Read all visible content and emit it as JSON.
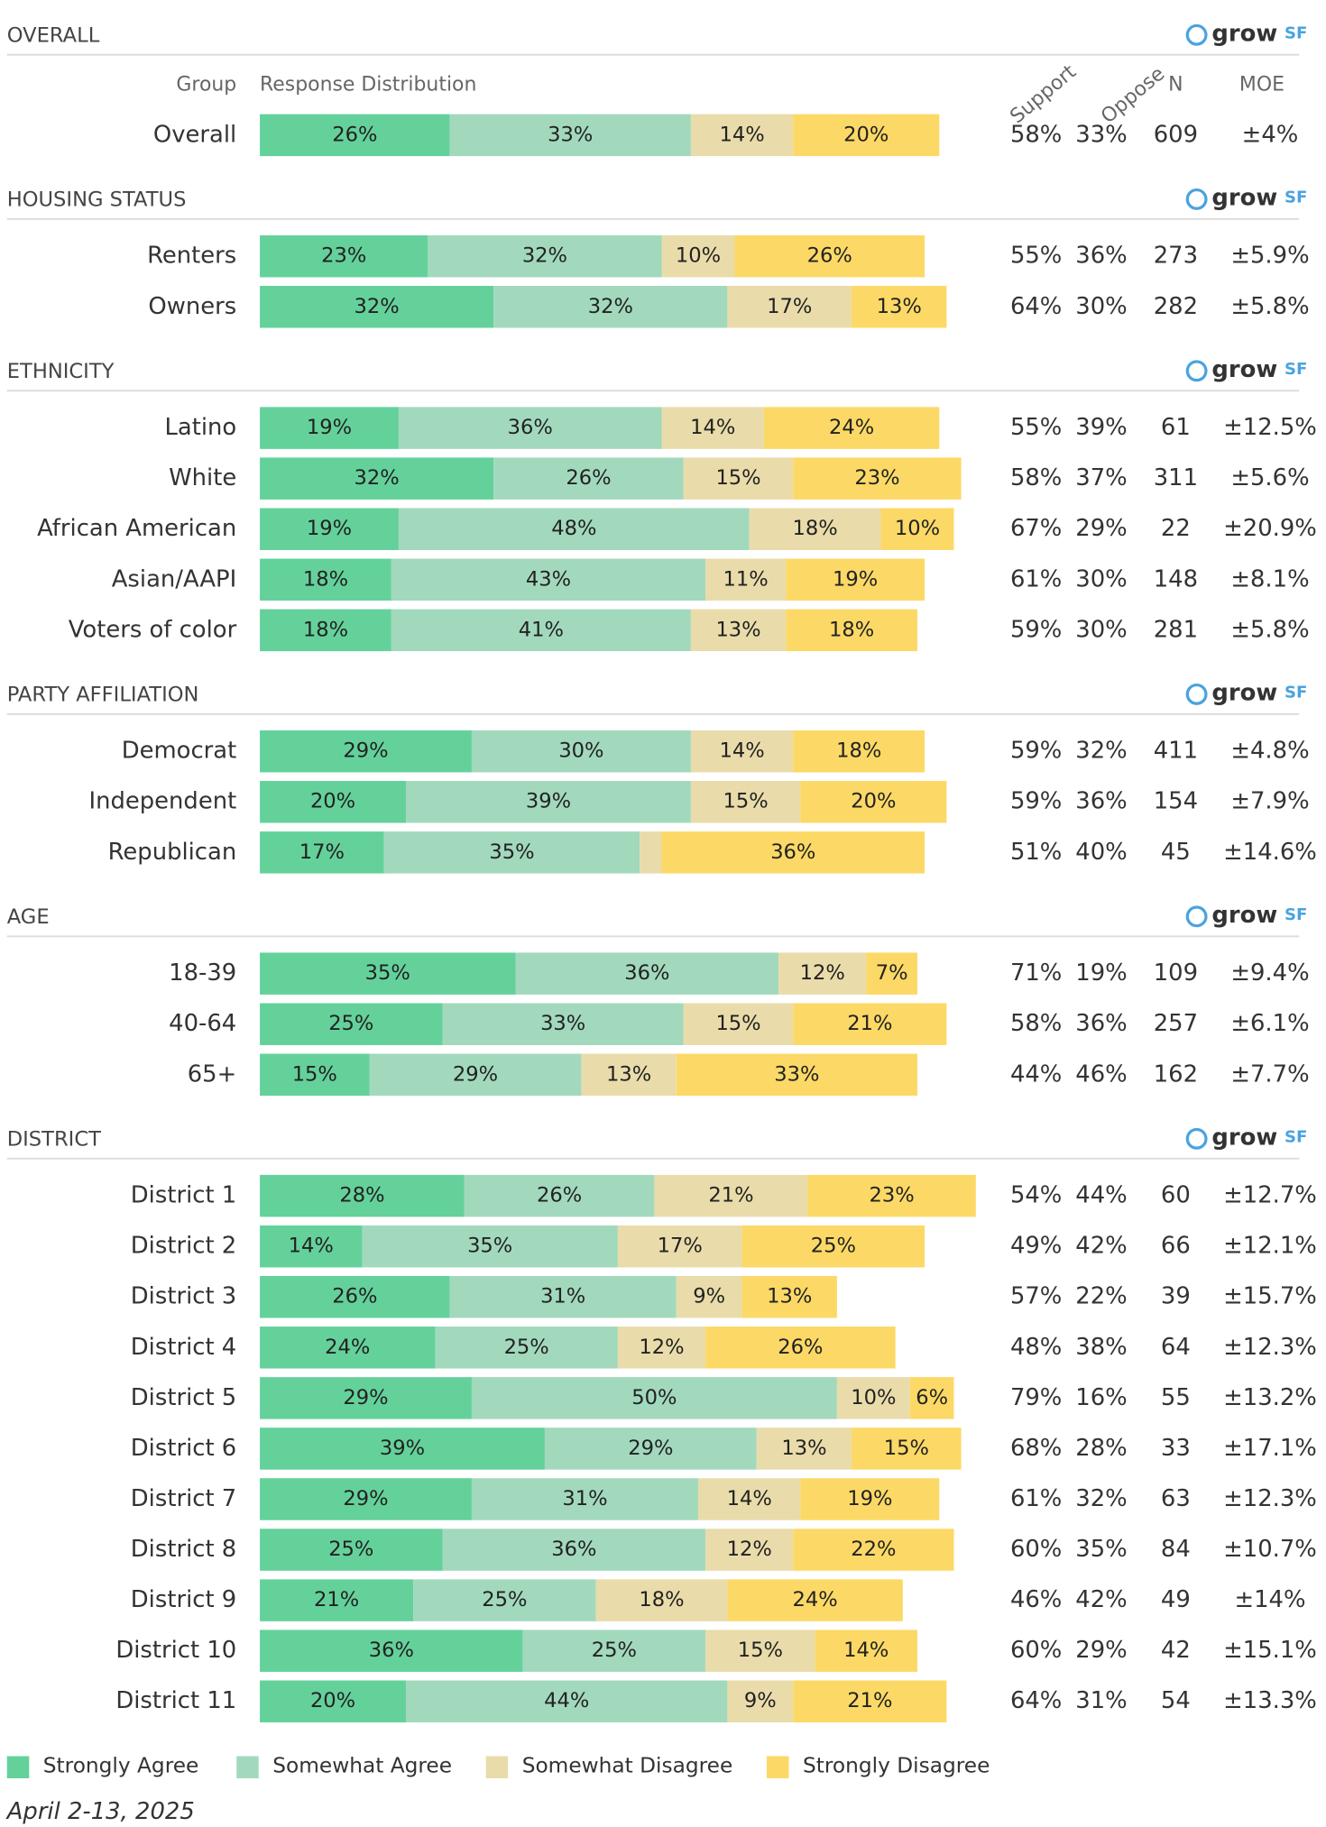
{
  "chart_data": {
    "type": "stacked-bar",
    "xlim": [
      0,
      100
    ],
    "columns": {
      "group": "Group",
      "distribution": "Response Distribution",
      "support": "Support",
      "oppose": "Oppose",
      "n": "N",
      "moe": "MOE"
    },
    "logo": {
      "text": "grow",
      "suffix": "SF"
    },
    "series": [
      {
        "name": "Strongly Agree",
        "color": "#64d19b"
      },
      {
        "name": "Somewhat Agree",
        "color": "#a2d9bd"
      },
      {
        "name": "Somewhat Disagree",
        "color": "#e9dcaa"
      },
      {
        "name": "Strongly Disagree",
        "color": "#fcd966"
      }
    ],
    "support_color": "#2e9b3e",
    "oppose_color": "#d42a2a",
    "date": "April 2-13, 2025",
    "sections": [
      {
        "title": "OVERALL",
        "rows": [
          {
            "group": "Overall",
            "values": [
              26,
              33,
              14,
              20
            ],
            "value_labels": [
              "26%",
              "33%",
              "14%",
              "20%"
            ],
            "support": "58%",
            "oppose": "33%",
            "n": 609,
            "moe": "±4%"
          }
        ]
      },
      {
        "title": "HOUSING STATUS",
        "rows": [
          {
            "group": "Renters",
            "values": [
              23,
              32,
              10,
              26
            ],
            "value_labels": [
              "23%",
              "32%",
              "10%",
              "26%"
            ],
            "support": "55%",
            "oppose": "36%",
            "n": 273,
            "moe": "±5.9%"
          },
          {
            "group": "Owners",
            "values": [
              32,
              32,
              17,
              13
            ],
            "value_labels": [
              "32%",
              "32%",
              "17%",
              "13%"
            ],
            "support": "64%",
            "oppose": "30%",
            "n": 282,
            "moe": "±5.8%"
          }
        ]
      },
      {
        "title": "ETHNICITY",
        "rows": [
          {
            "group": "Latino",
            "values": [
              19,
              36,
              14,
              24
            ],
            "value_labels": [
              "19%",
              "36%",
              "14%",
              "24%"
            ],
            "support": "55%",
            "oppose": "39%",
            "n": 61,
            "moe": "±12.5%"
          },
          {
            "group": "White",
            "values": [
              32,
              26,
              15,
              23
            ],
            "value_labels": [
              "32%",
              "26%",
              "15%",
              "23%"
            ],
            "support": "58%",
            "oppose": "37%",
            "n": 311,
            "moe": "±5.6%"
          },
          {
            "group": "African American",
            "values": [
              19,
              48,
              18,
              10
            ],
            "value_labels": [
              "19%",
              "48%",
              "18%",
              "10%"
            ],
            "support": "67%",
            "oppose": "29%",
            "n": 22,
            "moe": "±20.9%"
          },
          {
            "group": "Asian/AAPI",
            "values": [
              18,
              43,
              11,
              19
            ],
            "value_labels": [
              "18%",
              "43%",
              "11%",
              "19%"
            ],
            "support": "61%",
            "oppose": "30%",
            "n": 148,
            "moe": "±8.1%"
          },
          {
            "group": "Voters of color",
            "values": [
              18,
              41,
              13,
              18
            ],
            "value_labels": [
              "18%",
              "41%",
              "13%",
              "18%"
            ],
            "support": "59%",
            "oppose": "30%",
            "n": 281,
            "moe": "±5.8%"
          }
        ]
      },
      {
        "title": "PARTY AFFILIATION",
        "rows": [
          {
            "group": "Democrat",
            "values": [
              29,
              30,
              14,
              18
            ],
            "value_labels": [
              "29%",
              "30%",
              "14%",
              "18%"
            ],
            "support": "59%",
            "oppose": "32%",
            "n": 411,
            "moe": "±4.8%"
          },
          {
            "group": "Independent",
            "values": [
              20,
              39,
              15,
              20
            ],
            "value_labels": [
              "20%",
              "39%",
              "15%",
              "20%"
            ],
            "support": "59%",
            "oppose": "36%",
            "n": 154,
            "moe": "±7.9%"
          },
          {
            "group": "Republican",
            "values": [
              17,
              35,
              3,
              36
            ],
            "value_labels": [
              "17%",
              "35%",
              null,
              "36%"
            ],
            "support": "51%",
            "oppose": "40%",
            "n": 45,
            "moe": "±14.6%"
          }
        ]
      },
      {
        "title": "AGE",
        "rows": [
          {
            "group": "18-39",
            "values": [
              35,
              36,
              12,
              7
            ],
            "value_labels": [
              "35%",
              "36%",
              "12%",
              "7%"
            ],
            "support": "71%",
            "oppose": "19%",
            "n": 109,
            "moe": "±9.4%"
          },
          {
            "group": "40-64",
            "values": [
              25,
              33,
              15,
              21
            ],
            "value_labels": [
              "25%",
              "33%",
              "15%",
              "21%"
            ],
            "support": "58%",
            "oppose": "36%",
            "n": 257,
            "moe": "±6.1%"
          },
          {
            "group": "65+",
            "values": [
              15,
              29,
              13,
              33
            ],
            "value_labels": [
              "15%",
              "29%",
              "13%",
              "33%"
            ],
            "support": "44%",
            "oppose": "46%",
            "n": 162,
            "moe": "±7.7%"
          }
        ]
      },
      {
        "title": "DISTRICT",
        "rows": [
          {
            "group": "District 1",
            "values": [
              28,
              26,
              21,
              23
            ],
            "value_labels": [
              "28%",
              "26%",
              "21%",
              "23%"
            ],
            "support": "54%",
            "oppose": "44%",
            "n": 60,
            "moe": "±12.7%"
          },
          {
            "group": "District 2",
            "values": [
              14,
              35,
              17,
              25
            ],
            "value_labels": [
              "14%",
              "35%",
              "17%",
              "25%"
            ],
            "support": "49%",
            "oppose": "42%",
            "n": 66,
            "moe": "±12.1%"
          },
          {
            "group": "District 3",
            "values": [
              26,
              31,
              9,
              13
            ],
            "value_labels": [
              "26%",
              "31%",
              "9%",
              "13%"
            ],
            "support": "57%",
            "oppose": "22%",
            "n": 39,
            "moe": "±15.7%"
          },
          {
            "group": "District 4",
            "values": [
              24,
              25,
              12,
              26
            ],
            "value_labels": [
              "24%",
              "25%",
              "12%",
              "26%"
            ],
            "support": "48%",
            "oppose": "38%",
            "n": 64,
            "moe": "±12.3%"
          },
          {
            "group": "District 5",
            "values": [
              29,
              50,
              10,
              6
            ],
            "value_labels": [
              "29%",
              "50%",
              "10%",
              "6%"
            ],
            "support": "79%",
            "oppose": "16%",
            "n": 55,
            "moe": "±13.2%"
          },
          {
            "group": "District 6",
            "values": [
              39,
              29,
              13,
              15
            ],
            "value_labels": [
              "39%",
              "29%",
              "13%",
              "15%"
            ],
            "support": "68%",
            "oppose": "28%",
            "n": 33,
            "moe": "±17.1%"
          },
          {
            "group": "District 7",
            "values": [
              29,
              31,
              14,
              19
            ],
            "value_labels": [
              "29%",
              "31%",
              "14%",
              "19%"
            ],
            "support": "61%",
            "oppose": "32%",
            "n": 63,
            "moe": "±12.3%"
          },
          {
            "group": "District 8",
            "values": [
              25,
              36,
              12,
              22
            ],
            "value_labels": [
              "25%",
              "36%",
              "12%",
              "22%"
            ],
            "support": "60%",
            "oppose": "35%",
            "n": 84,
            "moe": "±10.7%"
          },
          {
            "group": "District 9",
            "values": [
              21,
              25,
              18,
              24
            ],
            "value_labels": [
              "21%",
              "25%",
              "18%",
              "24%"
            ],
            "support": "46%",
            "oppose": "42%",
            "n": 49,
            "moe": "±14%"
          },
          {
            "group": "District 10",
            "values": [
              36,
              25,
              15,
              14
            ],
            "value_labels": [
              "36%",
              "25%",
              "15%",
              "14%"
            ],
            "support": "60%",
            "oppose": "29%",
            "n": 42,
            "moe": "±15.1%"
          },
          {
            "group": "District 11",
            "values": [
              20,
              44,
              9,
              21
            ],
            "value_labels": [
              "20%",
              "44%",
              "9%",
              "21%"
            ],
            "support": "64%",
            "oppose": "31%",
            "n": 54,
            "moe": "±13.3%"
          }
        ]
      }
    ]
  }
}
